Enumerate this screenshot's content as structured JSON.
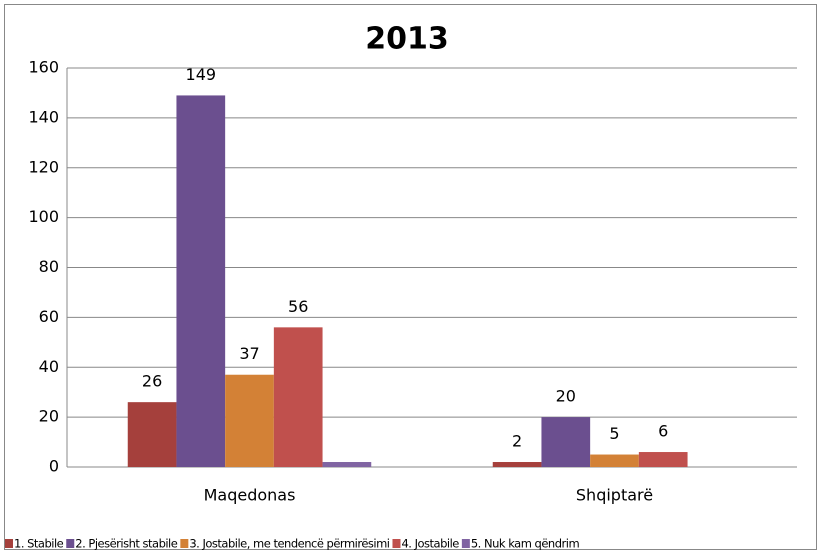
{
  "chart_data": {
    "type": "bar",
    "title": "2013",
    "categories": [
      "Maqedonas",
      "Shqiptarë"
    ],
    "series": [
      {
        "name": "1. Stabile",
        "color": "#a5403c",
        "values": [
          26,
          2
        ],
        "data_labels": true
      },
      {
        "name": "2. Pjesërisht stabile",
        "color": "#6b4f8f",
        "values": [
          149,
          20
        ],
        "data_labels": true
      },
      {
        "name": "3. Jostabile, me tendencë përmirësimi",
        "color": "#d38136",
        "values": [
          37,
          5
        ],
        "data_labels": true
      },
      {
        "name": "4. Jostabile",
        "color": "#c0504d",
        "values": [
          56,
          6
        ],
        "data_labels": true
      },
      {
        "name": "5. Nuk kam qëndrim",
        "color": "#8064a2",
        "values": [
          2,
          0
        ],
        "data_labels": false
      }
    ],
    "ylim": [
      0,
      160
    ],
    "yticks": [
      0,
      20,
      40,
      60,
      80,
      100,
      120,
      140,
      160
    ],
    "grid": true,
    "legend": "bottom"
  }
}
